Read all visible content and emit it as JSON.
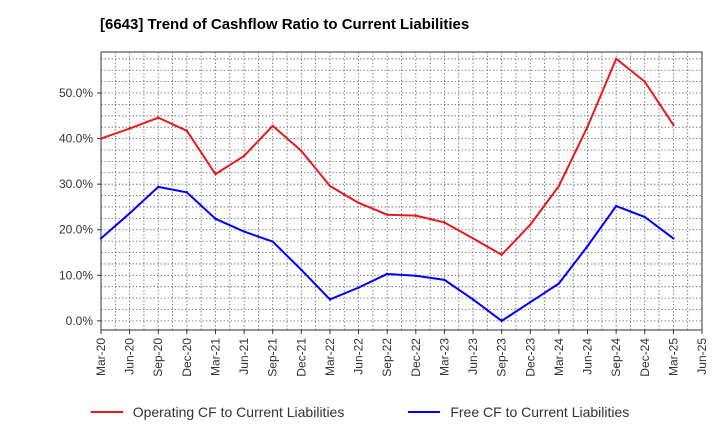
{
  "chart_data": {
    "type": "line",
    "title": "[6643]  Trend of Cashflow Ratio to Current Liabilities",
    "xlabel": "",
    "ylabel": "",
    "categories": [
      "Mar-20",
      "Jun-20",
      "Sep-20",
      "Dec-20",
      "Mar-21",
      "Jun-21",
      "Sep-21",
      "Dec-21",
      "Mar-22",
      "Jun-22",
      "Sep-22",
      "Dec-22",
      "Mar-23",
      "Jun-23",
      "Sep-23",
      "Dec-23",
      "Mar-24",
      "Jun-24",
      "Sep-24",
      "Dec-24",
      "Mar-25",
      "Jun-25"
    ],
    "yticks": [
      "0.0%",
      "10.0%",
      "20.0%",
      "30.0%",
      "40.0%",
      "50.0%"
    ],
    "ylim": [
      -2,
      59
    ],
    "grid": true,
    "legend_position": "bottom",
    "series": [
      {
        "name": "Operating CF to Current Liabilities",
        "color": "#e41a1c",
        "values": [
          40.0,
          42.2,
          44.6,
          41.7,
          32.2,
          36.2,
          42.8,
          37.3,
          29.6,
          25.9,
          23.3,
          23.1,
          21.6,
          18.1,
          14.5,
          21.1,
          29.6,
          42.6,
          57.5,
          52.5,
          43.0,
          null
        ]
      },
      {
        "name": "Free CF to Current Liabilities",
        "color": "#0000ff",
        "values": [
          18.1,
          23.6,
          29.4,
          28.2,
          22.4,
          19.6,
          17.4,
          11.2,
          4.7,
          7.3,
          10.3,
          9.9,
          9.0,
          4.7,
          0.0,
          4.1,
          8.2,
          16.4,
          25.2,
          22.8,
          18.1,
          null
        ]
      }
    ]
  }
}
